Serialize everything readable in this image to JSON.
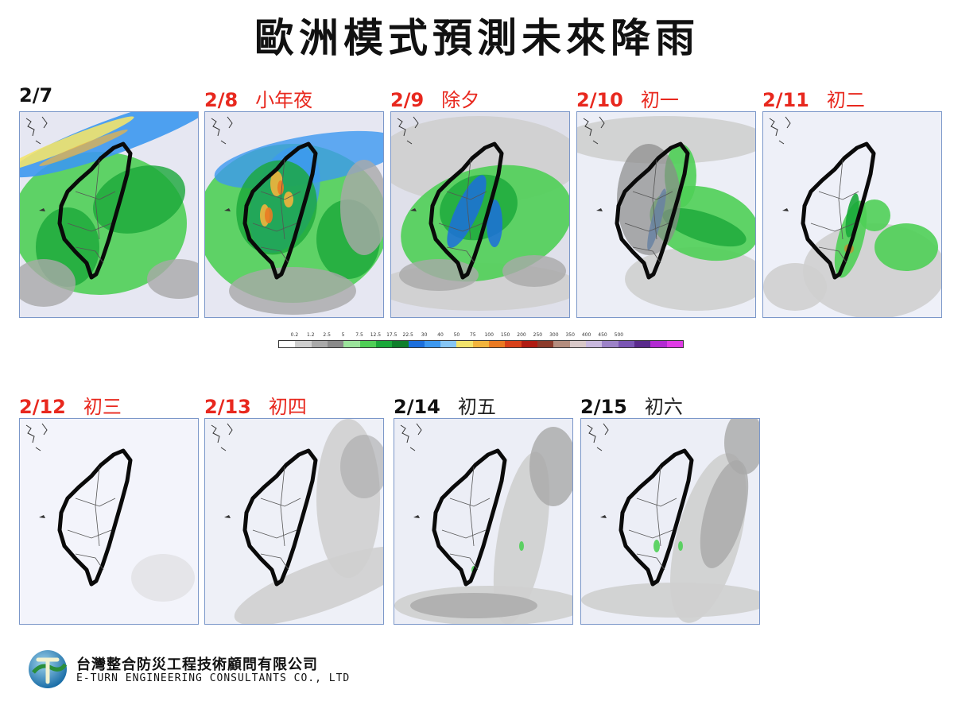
{
  "title": "歐洲模式預測未來降雨",
  "panels": [
    {
      "date": "2/7",
      "note": "",
      "date_color": "black",
      "note_color": "black"
    },
    {
      "date": "2/8",
      "note": "小年夜",
      "date_color": "red",
      "note_color": "red"
    },
    {
      "date": "2/9",
      "note": "除夕",
      "date_color": "red",
      "note_color": "red"
    },
    {
      "date": "2/10",
      "note": "初一",
      "date_color": "red",
      "note_color": "red"
    },
    {
      "date": "2/11",
      "note": "初二",
      "date_color": "red",
      "note_color": "red"
    },
    {
      "date": "2/12",
      "note": "初三",
      "date_color": "red",
      "note_color": "red"
    },
    {
      "date": "2/13",
      "note": "初四",
      "date_color": "red",
      "note_color": "red"
    },
    {
      "date": "2/14",
      "note": "初五",
      "date_color": "black",
      "note_color": "black"
    },
    {
      "date": "2/15",
      "note": "初六",
      "date_color": "black",
      "note_color": "black"
    }
  ],
  "colorbar": {
    "ticks": [
      "0.2",
      "1.2",
      "2.5",
      "5",
      "7.5",
      "12.5",
      "17.5",
      "22.5",
      "30",
      "40",
      "50",
      "75",
      "100",
      "150",
      "200",
      "250",
      "300",
      "350",
      "400",
      "450",
      "500"
    ],
    "colors": [
      "#ffffff",
      "#cfcfcf",
      "#a9a9a9",
      "#8a8a8a",
      "#9be39b",
      "#4fcf56",
      "#1aa83a",
      "#0f7f2b",
      "#1c6fdc",
      "#3c98f0",
      "#86c6f5",
      "#f2e36b",
      "#f2b43c",
      "#ea7a22",
      "#d8411a",
      "#b01b12",
      "#8c3b2b",
      "#b48d7e",
      "#d8c8c8",
      "#c8b8de",
      "#9c82c8",
      "#7a55b4",
      "#5a2a8c",
      "#b22ad2",
      "#e03be6"
    ]
  },
  "company": {
    "name_zh": "台灣整合防災工程技術顧問有限公司",
    "name_en": "E-TURN ENGINEERING CONSULTANTS CO., LTD"
  },
  "colors": {
    "accent_red": "#e8281e",
    "map_border": "#7b97c9"
  }
}
